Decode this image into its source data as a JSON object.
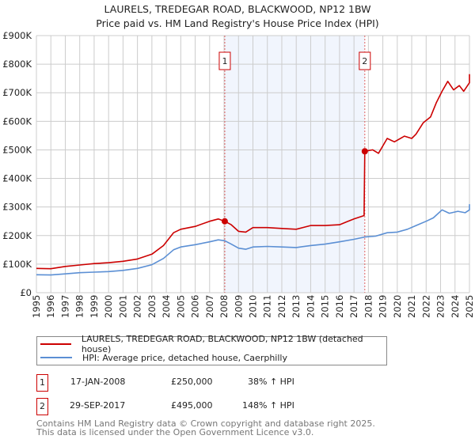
{
  "chart_data": {
    "type": "line",
    "title": "LAURELS, TREDEGAR ROAD, BLACKWOOD, NP12 1BW",
    "subtitle": "Price paid vs. HM Land Registry's House Price Index (HPI)",
    "xlabel": "",
    "ylabel": "",
    "xlim": [
      1995,
      2025
    ],
    "ylim": [
      0,
      900000
    ],
    "grid": true,
    "x_ticks": [
      "1995",
      "1996",
      "1997",
      "1998",
      "1999",
      "2000",
      "2001",
      "2002",
      "2003",
      "2004",
      "2005",
      "2006",
      "2007",
      "2008",
      "2009",
      "2010",
      "2011",
      "2012",
      "2013",
      "2014",
      "2015",
      "2016",
      "2017",
      "2018",
      "2019",
      "2020",
      "2021",
      "2022",
      "2023",
      "2024",
      "2025"
    ],
    "y_ticks": [
      {
        "v": 0,
        "label": "£0"
      },
      {
        "v": 100000,
        "label": "£100K"
      },
      {
        "v": 200000,
        "label": "£200K"
      },
      {
        "v": 300000,
        "label": "£300K"
      },
      {
        "v": 400000,
        "label": "£400K"
      },
      {
        "v": 500000,
        "label": "£500K"
      },
      {
        "v": 600000,
        "label": "£600K"
      },
      {
        "v": 700000,
        "label": "£700K"
      },
      {
        "v": 800000,
        "label": "£800K"
      },
      {
        "v": 900000,
        "label": "£900K"
      }
    ],
    "shaded_region": [
      2008.05,
      2017.75
    ],
    "series": [
      {
        "name": "LAURELS, TREDEGAR ROAD, BLACKWOOD, NP12 1BW (detached house)",
        "color": "#cc0000",
        "points": [
          [
            1995,
            85000
          ],
          [
            1996,
            84000
          ],
          [
            1997,
            92000
          ],
          [
            1998,
            97000
          ],
          [
            1999,
            102000
          ],
          [
            2000,
            105000
          ],
          [
            2001,
            110000
          ],
          [
            2002,
            118000
          ],
          [
            2003,
            135000
          ],
          [
            2003.8,
            165000
          ],
          [
            2004.5,
            210000
          ],
          [
            2005,
            222000
          ],
          [
            2006,
            232000
          ],
          [
            2007,
            250000
          ],
          [
            2007.6,
            258000
          ],
          [
            2008.05,
            250000
          ],
          [
            2008.5,
            238000
          ],
          [
            2009,
            215000
          ],
          [
            2009.5,
            212000
          ],
          [
            2010,
            228000
          ],
          [
            2011,
            228000
          ],
          [
            2012,
            225000
          ],
          [
            2013,
            222000
          ],
          [
            2014,
            235000
          ],
          [
            2015,
            235000
          ],
          [
            2016,
            238000
          ],
          [
            2016.5,
            248000
          ],
          [
            2017,
            258000
          ],
          [
            2017.7,
            270000
          ],
          [
            2017.75,
            495000
          ],
          [
            2018.3,
            500000
          ],
          [
            2018.7,
            488000
          ],
          [
            2019.3,
            540000
          ],
          [
            2019.8,
            528000
          ],
          [
            2020.5,
            548000
          ],
          [
            2021,
            540000
          ],
          [
            2021.3,
            555000
          ],
          [
            2021.8,
            595000
          ],
          [
            2022.3,
            615000
          ],
          [
            2022.7,
            665000
          ],
          [
            2023.1,
            705000
          ],
          [
            2023.5,
            740000
          ],
          [
            2023.9,
            710000
          ],
          [
            2024.3,
            725000
          ],
          [
            2024.6,
            705000
          ],
          [
            2025,
            735000
          ],
          [
            2025.5,
            765000
          ]
        ]
      },
      {
        "name": "HPI: Average price, detached house, Caerphilly",
        "color": "#5b8fd4",
        "points": [
          [
            1995,
            63000
          ],
          [
            1996,
            62000
          ],
          [
            1997,
            66000
          ],
          [
            1998,
            70000
          ],
          [
            1999,
            72000
          ],
          [
            2000,
            74000
          ],
          [
            2001,
            78000
          ],
          [
            2002,
            85000
          ],
          [
            2003,
            98000
          ],
          [
            2003.8,
            120000
          ],
          [
            2004.5,
            150000
          ],
          [
            2005,
            160000
          ],
          [
            2006,
            168000
          ],
          [
            2007,
            178000
          ],
          [
            2007.6,
            185000
          ],
          [
            2008.05,
            182000
          ],
          [
            2008.5,
            170000
          ],
          [
            2009,
            156000
          ],
          [
            2009.5,
            152000
          ],
          [
            2010,
            160000
          ],
          [
            2011,
            162000
          ],
          [
            2012,
            160000
          ],
          [
            2013,
            158000
          ],
          [
            2014,
            165000
          ],
          [
            2015,
            170000
          ],
          [
            2016,
            178000
          ],
          [
            2017,
            187000
          ],
          [
            2017.75,
            195000
          ],
          [
            2018.5,
            198000
          ],
          [
            2019.3,
            210000
          ],
          [
            2020,
            212000
          ],
          [
            2020.7,
            222000
          ],
          [
            2021.3,
            235000
          ],
          [
            2022,
            250000
          ],
          [
            2022.5,
            262000
          ],
          [
            2023.1,
            290000
          ],
          [
            2023.6,
            278000
          ],
          [
            2024.2,
            285000
          ],
          [
            2024.7,
            280000
          ],
          [
            2025.2,
            290000
          ],
          [
            2025.5,
            310000
          ]
        ]
      }
    ],
    "annotations": [
      {
        "id": "1",
        "x": 2008.05,
        "y": 250000
      },
      {
        "id": "2",
        "x": 2017.75,
        "y": 495000
      }
    ]
  },
  "legend": {
    "items": [
      {
        "label": "LAURELS, TREDEGAR ROAD, BLACKWOOD, NP12 1BW (detached house)",
        "color": "#cc0000"
      },
      {
        "label": "HPI: Average price, detached house, Caerphilly",
        "color": "#5b8fd4"
      }
    ]
  },
  "transactions": [
    {
      "id": "1",
      "date": "17-JAN-2008",
      "price": "£250,000",
      "hpi": "38% ↑ HPI"
    },
    {
      "id": "2",
      "date": "29-SEP-2017",
      "price": "£495,000",
      "hpi": "148% ↑ HPI"
    }
  ],
  "footer": {
    "line1": "Contains HM Land Registry data © Crown copyright and database right 2025.",
    "line2": "This data is licensed under the Open Government Licence v3.0."
  }
}
